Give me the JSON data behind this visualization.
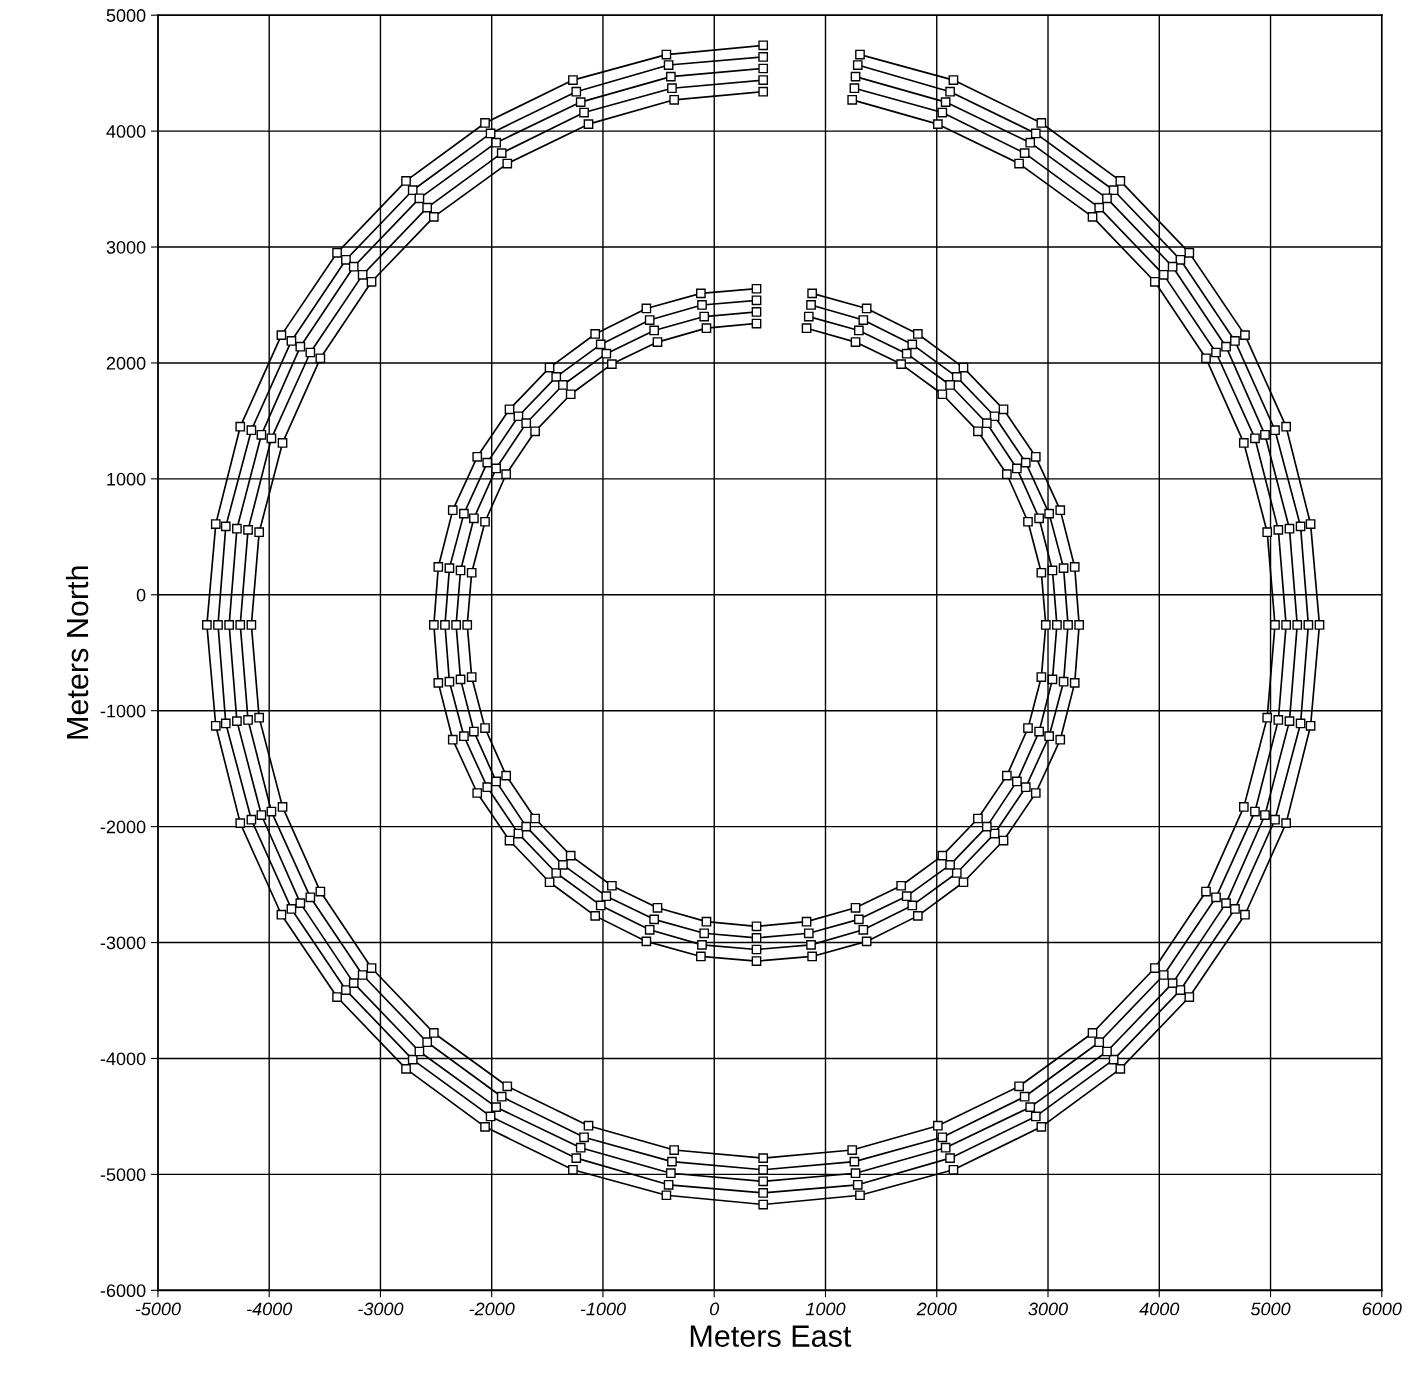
{
  "chart_data": {
    "type": "line",
    "xlabel": "Meters East",
    "ylabel": "Meters North",
    "xlim": [
      -5000,
      6000
    ],
    "ylim": [
      -6000,
      5000
    ],
    "xticks": [
      -5000,
      -4000,
      -3000,
      -2000,
      -1000,
      0,
      1000,
      2000,
      3000,
      4000,
      5000,
      6000
    ],
    "yticks": [
      -6000,
      -5000,
      -4000,
      -3000,
      -2000,
      -1000,
      0,
      1000,
      2000,
      3000,
      4000,
      5000
    ],
    "grid": true,
    "marker": "square",
    "line_style": "solid",
    "series": [
      {
        "color": "#000000",
        "x": [
          440,
          -430,
          -1270,
          -2060,
          -2770,
          -3390,
          -3890,
          -4260,
          -4480,
          -4560,
          -4480,
          -4260,
          -3890,
          -3390,
          -2770,
          -2060,
          -1270,
          -430,
          440,
          1310,
          2150,
          2940,
          3650,
          4270,
          4770,
          5140,
          5360,
          5440,
          5360,
          5140,
          4770,
          4270,
          3650,
          2940,
          2150,
          1310
        ],
        "values": [
          4740,
          4660,
          4440,
          4070,
          3570,
          2950,
          2240,
          1450,
          610,
          -260,
          -1130,
          -1970,
          -2760,
          -3470,
          -4090,
          -4590,
          -4960,
          -5180,
          -5260,
          -5180,
          -4960,
          -4590,
          -4090,
          -3470,
          -2760,
          -1970,
          -1130,
          -260,
          610,
          1450,
          2240,
          2950,
          3570,
          4070,
          4440,
          4660
        ]
      },
      {
        "color": "#000000",
        "x": [
          440,
          -410,
          -1240,
          -2010,
          -2710,
          -3310,
          -3800,
          -4160,
          -4390,
          -4460,
          -4390,
          -4160,
          -3800,
          -3310,
          -2710,
          -2010,
          -1240,
          -410,
          440,
          1290,
          2120,
          2890,
          3590,
          4190,
          4680,
          5040,
          5270,
          5340,
          5270,
          5040,
          4680,
          4190,
          3590,
          2890,
          2120,
          1290
        ],
        "values": [
          4640,
          4570,
          4340,
          3980,
          3490,
          2890,
          2190,
          1420,
          590,
          -260,
          -1110,
          -1940,
          -2710,
          -3410,
          -4010,
          -4500,
          -4860,
          -5090,
          -5160,
          -5090,
          -4860,
          -4500,
          -4010,
          -3410,
          -2710,
          -1940,
          -1110,
          -260,
          590,
          1420,
          2190,
          2890,
          3490,
          3980,
          4340,
          4570
        ]
      },
      {
        "color": "#000000",
        "x": [
          440,
          -390,
          -1200,
          -1960,
          -2650,
          -3240,
          -3720,
          -4070,
          -4290,
          -4360,
          -4290,
          -4070,
          -3720,
          -3240,
          -2650,
          -1960,
          -1200,
          -390,
          440,
          1270,
          2080,
          2840,
          3530,
          4120,
          4600,
          4950,
          5170,
          5240,
          5170,
          4950,
          4600,
          4120,
          3530,
          2840,
          2080,
          1270
        ],
        "values": [
          4540,
          4470,
          4250,
          3900,
          3420,
          2830,
          2140,
          1380,
          570,
          -260,
          -1090,
          -1900,
          -2660,
          -3350,
          -3940,
          -4420,
          -4770,
          -4990,
          -5060,
          -4990,
          -4770,
          -4420,
          -3940,
          -3350,
          -2660,
          -1900,
          -1090,
          -260,
          570,
          1380,
          2140,
          2830,
          3420,
          3900,
          4250,
          4470
        ]
      },
      {
        "color": "#000000",
        "x": [
          440,
          -380,
          -1170,
          -1910,
          -2580,
          -3160,
          -3630,
          -3980,
          -4190,
          -4260,
          -4190,
          -3980,
          -3630,
          -3160,
          -2580,
          -1910,
          -1170,
          -380,
          440,
          1260,
          2050,
          2790,
          3460,
          4040,
          4510,
          4860,
          5070,
          5140,
          5070,
          4860,
          4510,
          4040,
          3460,
          2790,
          2050,
          1260
        ],
        "values": [
          4440,
          4370,
          4160,
          3810,
          3340,
          2760,
          2090,
          1350,
          560,
          -260,
          -1080,
          -1870,
          -2610,
          -3280,
          -3860,
          -4330,
          -4680,
          -4890,
          -4960,
          -4890,
          -4680,
          -4330,
          -3860,
          -3280,
          -2610,
          -1870,
          -1080,
          -260,
          560,
          1350,
          2090,
          2760,
          3340,
          3810,
          4160,
          4370
        ]
      },
      {
        "color": "#000000",
        "x": [
          440,
          -360,
          -1130,
          -1860,
          -2520,
          -3080,
          -3540,
          -3880,
          -4090,
          -4160,
          -4090,
          -3880,
          -3540,
          -3080,
          -2520,
          -1860,
          -1130,
          -360,
          440,
          1240,
          2010,
          2740,
          3400,
          3960,
          4420,
          4760,
          4970,
          5040,
          4970,
          4760,
          4420,
          3960,
          3400,
          2740,
          2010,
          1240
        ],
        "values": [
          4340,
          4270,
          4060,
          3720,
          3260,
          2700,
          2040,
          1310,
          540,
          -260,
          -1060,
          -1830,
          -2560,
          -3220,
          -3780,
          -4240,
          -4580,
          -4790,
          -4860,
          -4790,
          -4580,
          -4240,
          -3780,
          -3220,
          -2560,
          -1830,
          -1060,
          -260,
          540,
          1310,
          2040,
          2700,
          3260,
          3720,
          4060,
          4270
        ]
      },
      {
        "color": "#000000",
        "x": [
          380,
          -120,
          -610,
          -1070,
          -1480,
          -1840,
          -2130,
          -2350,
          -2480,
          -2520,
          -2480,
          -2350,
          -2130,
          -1840,
          -1480,
          -1070,
          -610,
          -120,
          380,
          880,
          1370,
          1830,
          2240,
          2600,
          2890,
          3110,
          3240,
          3280,
          3240,
          3110,
          2890,
          2600,
          2240,
          1830,
          1370,
          880
        ],
        "values": [
          2640,
          2600,
          2470,
          2250,
          1960,
          1600,
          1190,
          730,
          240,
          -260,
          -760,
          -1250,
          -1710,
          -2120,
          -2480,
          -2770,
          -2990,
          -3120,
          -3160,
          -3120,
          -2990,
          -2770,
          -2480,
          -2120,
          -1710,
          -1250,
          -760,
          -260,
          240,
          730,
          1190,
          1600,
          1960,
          2250,
          2470,
          2600
        ]
      },
      {
        "color": "#000000",
        "x": [
          380,
          -110,
          -580,
          -1020,
          -1420,
          -1760,
          -2040,
          -2250,
          -2380,
          -2420,
          -2380,
          -2250,
          -2040,
          -1760,
          -1420,
          -1020,
          -580,
          -110,
          380,
          870,
          1340,
          1780,
          2180,
          2520,
          2800,
          3010,
          3140,
          3180,
          3140,
          3010,
          2800,
          2520,
          2180,
          1780,
          1340,
          870
        ],
        "values": [
          2540,
          2500,
          2370,
          2160,
          1880,
          1540,
          1140,
          700,
          230,
          -260,
          -750,
          -1220,
          -1660,
          -2060,
          -2400,
          -2680,
          -2890,
          -3020,
          -3060,
          -3020,
          -2890,
          -2680,
          -2400,
          -2060,
          -1660,
          -1220,
          -750,
          -260,
          230,
          700,
          1140,
          1540,
          1880,
          2160,
          2370,
          2500
        ]
      },
      {
        "color": "#000000",
        "x": [
          380,
          -90,
          -540,
          -970,
          -1360,
          -1690,
          -1960,
          -2160,
          -2280,
          -2320,
          -2280,
          -2160,
          -1960,
          -1690,
          -1360,
          -970,
          -540,
          -90,
          380,
          850,
          1300,
          1730,
          2120,
          2450,
          2720,
          2920,
          3040,
          3080,
          3040,
          2920,
          2720,
          2450,
          2120,
          1730,
          1300,
          850
        ],
        "values": [
          2440,
          2400,
          2280,
          2080,
          1810,
          1480,
          1090,
          660,
          210,
          -260,
          -730,
          -1180,
          -1610,
          -2000,
          -2330,
          -2600,
          -2800,
          -2920,
          -2960,
          -2920,
          -2800,
          -2600,
          -2330,
          -2000,
          -1610,
          -1180,
          -730,
          -260,
          210,
          660,
          1090,
          1480,
          1810,
          2080,
          2280,
          2400
        ]
      },
      {
        "color": "#000000",
        "x": [
          380,
          -70,
          -510,
          -920,
          -1290,
          -1610,
          -1870,
          -2060,
          -2180,
          -2220,
          -2180,
          -2060,
          -1870,
          -1610,
          -1290,
          -920,
          -510,
          -70,
          380,
          830,
          1270,
          1680,
          2050,
          2370,
          2630,
          2820,
          2940,
          2980,
          2940,
          2820,
          2630,
          2370,
          2050,
          1680,
          1270,
          830
        ],
        "values": [
          2340,
          2300,
          2180,
          1990,
          1730,
          1410,
          1040,
          630,
          190,
          -260,
          -710,
          -1150,
          -1560,
          -1930,
          -2250,
          -2510,
          -2700,
          -2820,
          -2860,
          -2820,
          -2700,
          -2510,
          -2250,
          -1930,
          -1560,
          -1150,
          -710,
          -260,
          190,
          630,
          1040,
          1410,
          1730,
          1990,
          2180,
          2300
        ]
      }
    ]
  }
}
